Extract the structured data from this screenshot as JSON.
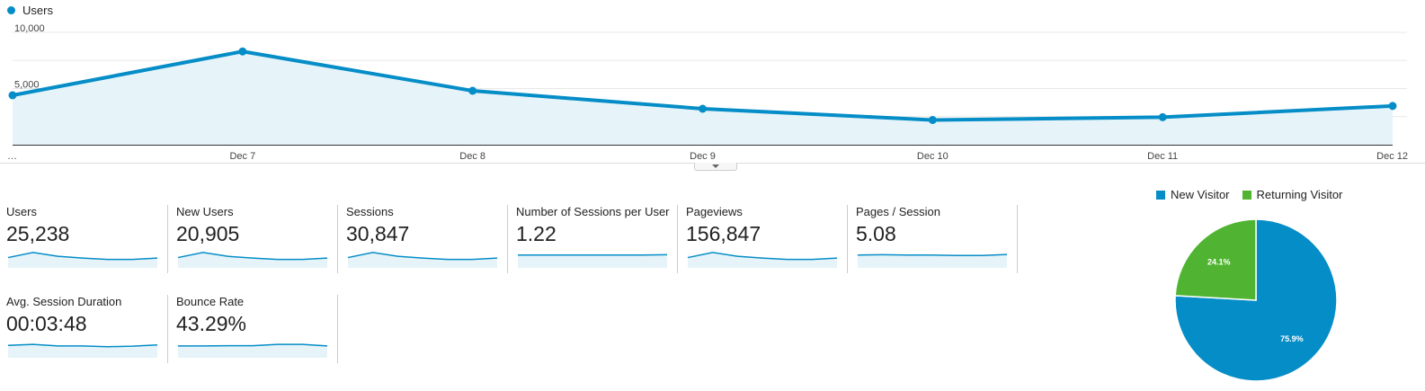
{
  "main_chart_legend": "Users",
  "colors": {
    "primary": "#058dc7",
    "secondary": "#50b432",
    "fill": "#e6f4fa",
    "grid": "#e8e8e8"
  },
  "chart_data": [
    {
      "type": "area",
      "series": [
        {
          "name": "Users",
          "values": [
            4400,
            8300,
            4800,
            3200,
            2200,
            2450,
            3450
          ]
        }
      ],
      "x": [
        "…",
        "Dec 7",
        "Dec 8",
        "Dec 9",
        "Dec 10",
        "Dec 11",
        "Dec 12"
      ],
      "y_ticks": [
        "10,000",
        "5,000"
      ],
      "ylim": [
        0,
        10000
      ],
      "grid": true,
      "legend": "top-left"
    },
    {
      "type": "pie",
      "categories": [
        "New Visitor",
        "Returning Visitor"
      ],
      "values": [
        75.9,
        24.1
      ],
      "data_labels": [
        "75.9%",
        "24.1%"
      ],
      "legend": "top"
    }
  ],
  "metrics": [
    {
      "label": "Users",
      "value": "25,238",
      "spark": [
        40,
        60,
        45,
        38,
        33,
        33,
        38
      ]
    },
    {
      "label": "New Users",
      "value": "20,905",
      "spark": [
        40,
        60,
        45,
        38,
        33,
        33,
        38
      ]
    },
    {
      "label": "Sessions",
      "value": "30,847",
      "spark": [
        40,
        60,
        45,
        38,
        33,
        33,
        38
      ]
    },
    {
      "label": "Number of Sessions per User",
      "value": "1.22",
      "spark": [
        50,
        50,
        50,
        50,
        50,
        50,
        51
      ]
    },
    {
      "label": "Pageviews",
      "value": "156,847",
      "spark": [
        40,
        60,
        45,
        38,
        33,
        33,
        38
      ]
    },
    {
      "label": "Pages / Session",
      "value": "5.08",
      "spark": [
        50,
        51,
        50,
        50,
        48,
        48,
        52
      ]
    },
    {
      "label": "Avg. Session Duration",
      "value": "00:03:48",
      "spark": [
        48,
        52,
        46,
        46,
        43,
        45,
        50
      ]
    },
    {
      "label": "Bounce Rate",
      "value": "43.29%",
      "spark": [
        46,
        46,
        47,
        47,
        52,
        52,
        46
      ]
    }
  ]
}
